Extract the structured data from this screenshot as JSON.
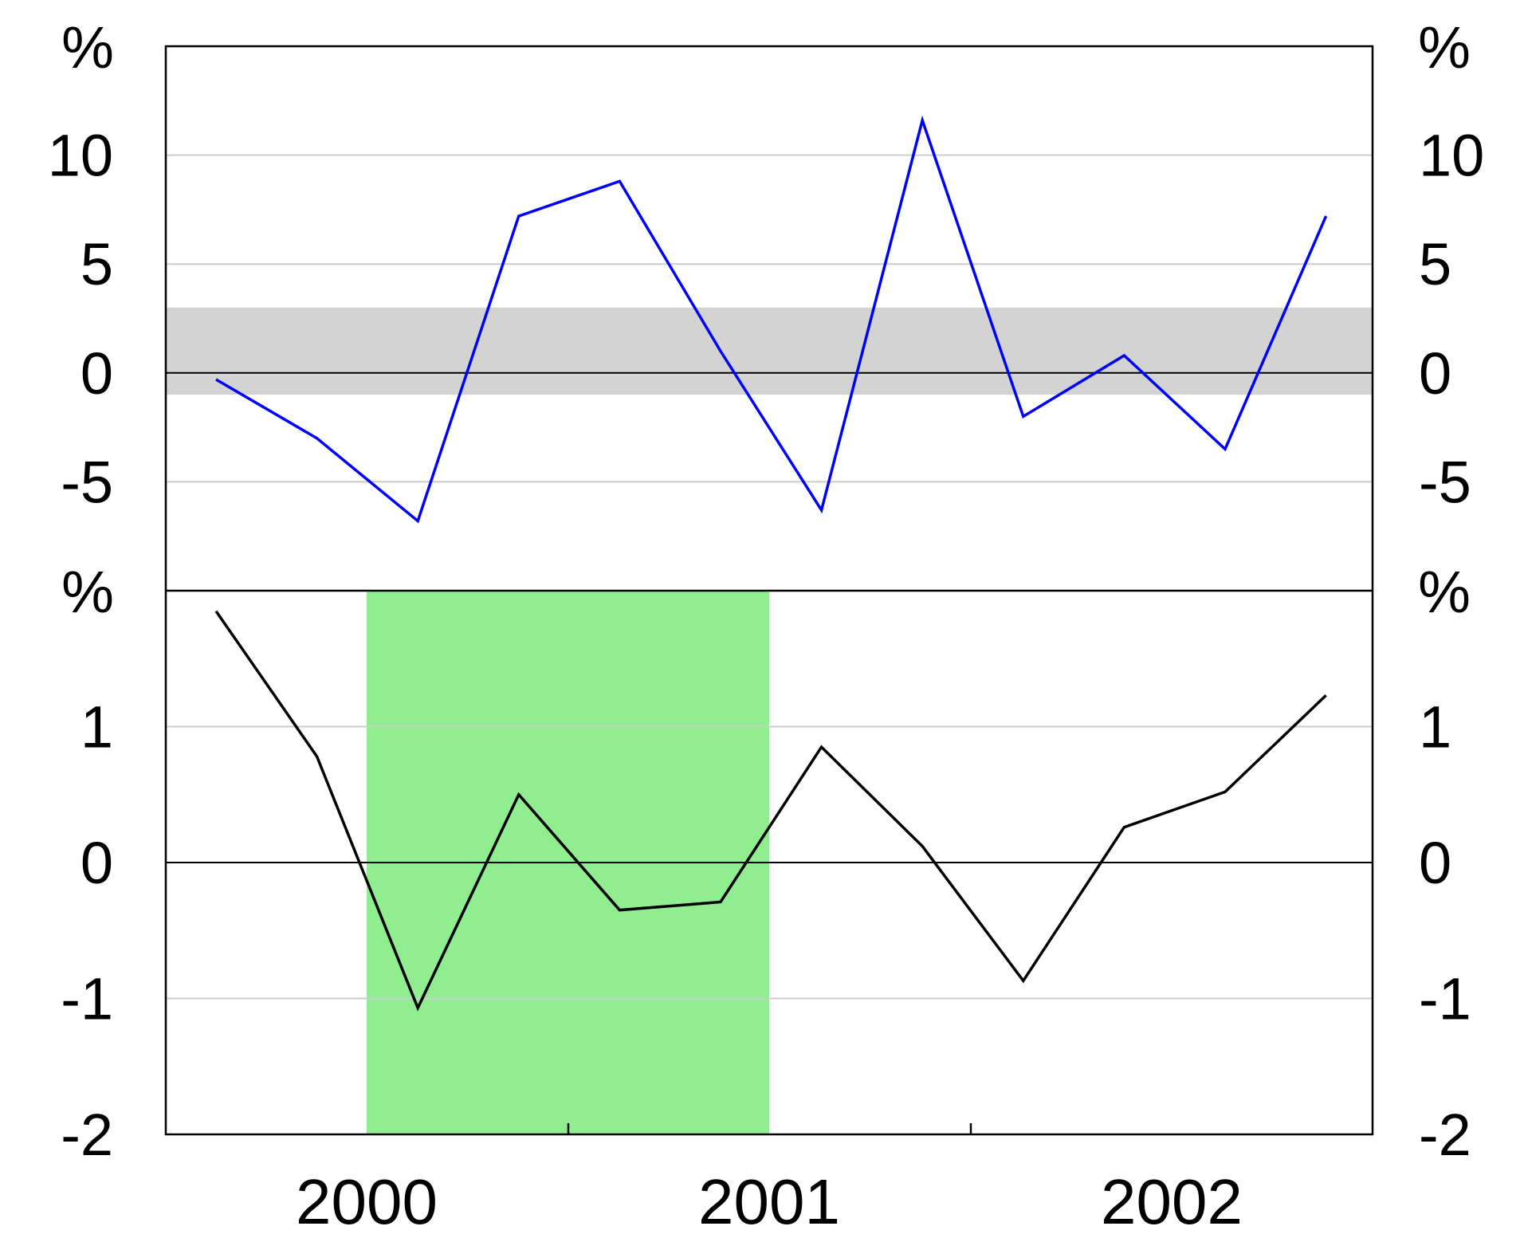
{
  "chart_data": [
    {
      "type": "line",
      "panel": "top",
      "unit": "%",
      "ylim": [
        -10,
        15
      ],
      "yticks": [
        -5,
        0,
        5,
        10
      ],
      "ytick_labels": [
        "-5",
        "0",
        "5",
        "10"
      ],
      "grid": true,
      "shaded_band": {
        "from": -1,
        "to": 3,
        "color": "#d3d3d3"
      },
      "series": [
        {
          "color": "#0000ff",
          "x": [
            "2000-Q1",
            "2000-Q2",
            "2000-Q3",
            "2000-Q4",
            "2001-Q1",
            "2001-Q2",
            "2001-Q3",
            "2001-Q4",
            "2002-Q1",
            "2002-Q2",
            "2002-Q3",
            "2002-Q4"
          ],
          "values": [
            -0.3,
            -3.0,
            -6.8,
            7.2,
            8.8,
            1.0,
            -6.3,
            11.6,
            -2.0,
            0.8,
            -3.5,
            7.2
          ]
        }
      ]
    },
    {
      "type": "line",
      "panel": "bottom",
      "unit": "%",
      "ylim": [
        -2,
        2
      ],
      "yticks": [
        -2,
        -1,
        0,
        1
      ],
      "ytick_labels": [
        "-2",
        "-1",
        "0",
        "1"
      ],
      "grid": true,
      "shaded_region": {
        "from": "2000-Q2.5",
        "to": "2001-Q2.5",
        "color": "#90ee90"
      },
      "series": [
        {
          "color": "#000000",
          "x": [
            "2000-Q1",
            "2000-Q2",
            "2000-Q3",
            "2000-Q4",
            "2001-Q1",
            "2001-Q2",
            "2001-Q3",
            "2001-Q4",
            "2002-Q1",
            "2002-Q2",
            "2002-Q3",
            "2002-Q4"
          ],
          "values": [
            1.85,
            0.78,
            -1.07,
            0.5,
            -0.35,
            -0.29,
            0.85,
            0.12,
            -0.87,
            0.26,
            0.52,
            1.23
          ]
        }
      ]
    }
  ],
  "x_axis": {
    "years": [
      "2000",
      "2001",
      "2002"
    ]
  }
}
